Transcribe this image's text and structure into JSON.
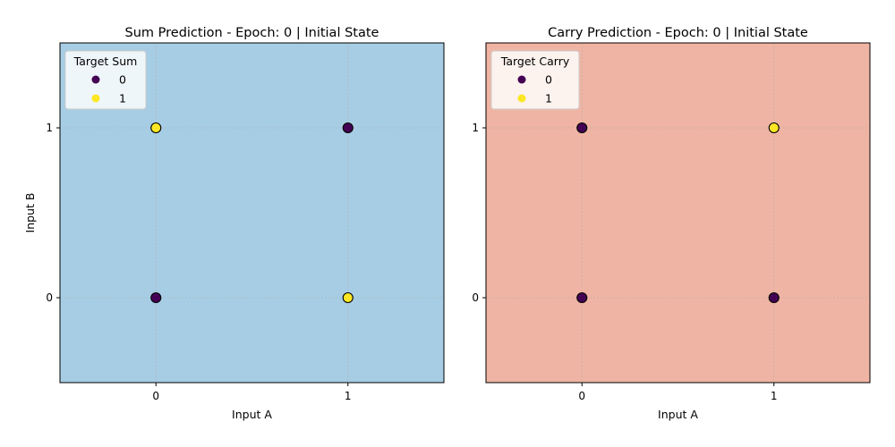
{
  "chart_data": [
    {
      "type": "scatter",
      "title": "Sum Prediction - Epoch: 0 | Initial State",
      "xlabel": "Input A",
      "ylabel": "Input B",
      "xlim": [
        -0.5,
        1.5
      ],
      "ylim": [
        -0.5,
        1.5
      ],
      "xticks": [
        "0",
        "1"
      ],
      "yticks": [
        "0",
        "1"
      ],
      "background_color": "#a6cde4",
      "grid": true,
      "legend": {
        "title": "Target Sum",
        "placement": "top-left",
        "entries": [
          {
            "label": "0",
            "color": "#440154"
          },
          {
            "label": "1",
            "color": "#fde725"
          }
        ]
      },
      "points": [
        {
          "x": 0,
          "y": 0,
          "target": 0
        },
        {
          "x": 0,
          "y": 1,
          "target": 1
        },
        {
          "x": 1,
          "y": 0,
          "target": 1
        },
        {
          "x": 1,
          "y": 1,
          "target": 0
        }
      ]
    },
    {
      "type": "scatter",
      "title": "Carry Prediction - Epoch: 0 | Initial State",
      "xlabel": "Input A",
      "ylabel": "",
      "xlim": [
        -0.5,
        1.5
      ],
      "ylim": [
        -0.5,
        1.5
      ],
      "xticks": [
        "0",
        "1"
      ],
      "yticks": [
        "0",
        "1"
      ],
      "background_color": "#efb4a3",
      "grid": true,
      "legend": {
        "title": "Target Carry",
        "placement": "top-left",
        "entries": [
          {
            "label": "0",
            "color": "#440154"
          },
          {
            "label": "1",
            "color": "#fde725"
          }
        ]
      },
      "points": [
        {
          "x": 0,
          "y": 0,
          "target": 0
        },
        {
          "x": 0,
          "y": 1,
          "target": 0
        },
        {
          "x": 1,
          "y": 0,
          "target": 0
        },
        {
          "x": 1,
          "y": 1,
          "target": 1
        }
      ]
    }
  ]
}
